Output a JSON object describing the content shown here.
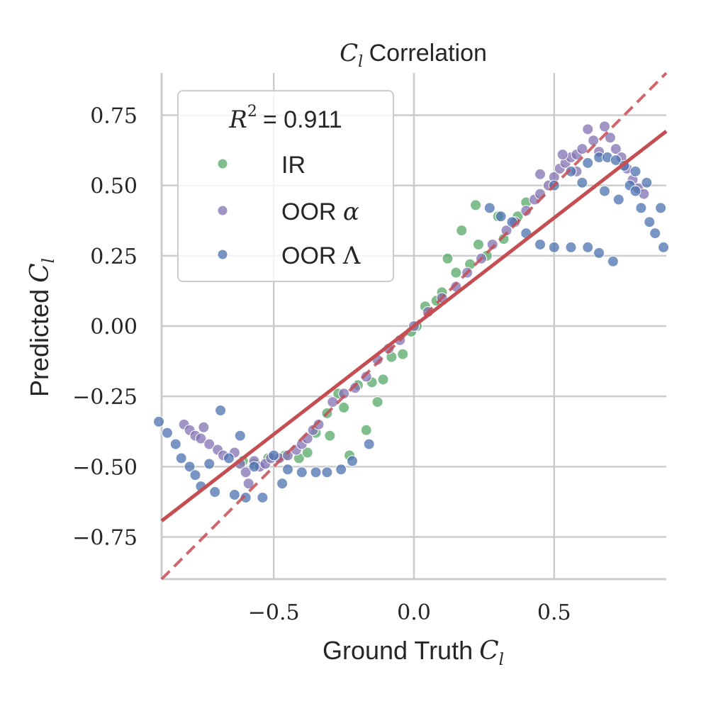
{
  "chart_data": {
    "type": "scatter",
    "title_symbol": "C",
    "title_subscript": "l",
    "title_rest": "Correlation",
    "xlabel_text": "Ground Truth",
    "xlabel_symbol": "C",
    "xlabel_subscript": "l",
    "ylabel_text": "Predicted",
    "ylabel_symbol": "C",
    "ylabel_subscript": "l",
    "xlim": [
      -0.9,
      0.9
    ],
    "ylim": [
      -0.9,
      0.9
    ],
    "xticks": [
      -0.5,
      0.0,
      0.5
    ],
    "xtick_labels": [
      "−0.5",
      "0.0",
      "0.5"
    ],
    "yticks": [
      0.75,
      0.5,
      0.25,
      0.0,
      -0.25,
      -0.5,
      -0.75
    ],
    "ytick_labels": [
      "0.75",
      "0.50",
      "0.25",
      "0.00",
      "−0.25",
      "−0.50",
      "−0.75"
    ],
    "grid": true,
    "legend_placement": "top-left",
    "legend_title_symbol": "R",
    "legend_title_exponent": "2",
    "legend_title_value": "= 0.911",
    "series": [
      {
        "name": "IR",
        "label_text": "IR",
        "label_symbol": "",
        "color": "#55a868",
        "points": [
          [
            -0.61,
            -0.48
          ],
          [
            -0.57,
            -0.49
          ],
          [
            -0.52,
            -0.47
          ],
          [
            -0.46,
            -0.46
          ],
          [
            -0.41,
            -0.47
          ],
          [
            -0.38,
            -0.45
          ],
          [
            -0.35,
            -0.38
          ],
          [
            -0.31,
            -0.31
          ],
          [
            -0.3,
            -0.39
          ],
          [
            -0.27,
            -0.24
          ],
          [
            -0.25,
            -0.29
          ],
          [
            -0.23,
            -0.46
          ],
          [
            -0.2,
            -0.21
          ],
          [
            -0.17,
            -0.37
          ],
          [
            -0.15,
            -0.2
          ],
          [
            -0.13,
            -0.27
          ],
          [
            -0.11,
            -0.19
          ],
          [
            -0.08,
            -0.11
          ],
          [
            -0.04,
            -0.1
          ],
          [
            -0.01,
            -0.02
          ],
          [
            0.01,
            0.0
          ],
          [
            0.04,
            0.07
          ],
          [
            0.08,
            0.09
          ],
          [
            0.1,
            0.12
          ],
          [
            0.12,
            0.24
          ],
          [
            0.15,
            0.19
          ],
          [
            0.17,
            0.34
          ],
          [
            0.2,
            0.22
          ],
          [
            0.22,
            0.43
          ],
          [
            0.23,
            0.29
          ],
          [
            0.26,
            0.25
          ],
          [
            0.3,
            0.39
          ],
          [
            0.32,
            0.31
          ],
          [
            0.37,
            0.39
          ],
          [
            0.4,
            0.44
          ]
        ]
      },
      {
        "name": "OOR α",
        "label_text": "OOR ",
        "label_symbol": "α",
        "color": "#8172b3",
        "points": [
          [
            -0.82,
            -0.35
          ],
          [
            -0.8,
            -0.37
          ],
          [
            -0.78,
            -0.39
          ],
          [
            -0.76,
            -0.4
          ],
          [
            -0.75,
            -0.36
          ],
          [
            -0.73,
            -0.42
          ],
          [
            -0.7,
            -0.44
          ],
          [
            -0.68,
            -0.46
          ],
          [
            -0.64,
            -0.45
          ],
          [
            -0.62,
            -0.49
          ],
          [
            -0.6,
            -0.52
          ],
          [
            -0.59,
            -0.56
          ],
          [
            -0.57,
            -0.48
          ],
          [
            -0.55,
            -0.5
          ],
          [
            -0.53,
            -0.49
          ],
          [
            -0.51,
            -0.47
          ],
          [
            -0.48,
            -0.47
          ],
          [
            -0.45,
            -0.46
          ],
          [
            -0.42,
            -0.44
          ],
          [
            -0.4,
            -0.42
          ],
          [
            -0.38,
            -0.4
          ],
          [
            -0.36,
            -0.37
          ],
          [
            -0.34,
            -0.35
          ],
          [
            -0.29,
            -0.27
          ],
          [
            -0.25,
            -0.24
          ],
          [
            -0.21,
            -0.22
          ],
          [
            -0.17,
            -0.18
          ],
          [
            -0.13,
            -0.12
          ],
          [
            -0.09,
            -0.08
          ],
          [
            -0.05,
            -0.05
          ],
          [
            0.0,
            0.0
          ],
          [
            0.05,
            0.05
          ],
          [
            0.1,
            0.1
          ],
          [
            0.15,
            0.14
          ],
          [
            0.19,
            0.19
          ],
          [
            0.24,
            0.24
          ],
          [
            0.28,
            0.29
          ],
          [
            0.33,
            0.34
          ],
          [
            0.36,
            0.37
          ],
          [
            0.4,
            0.41
          ],
          [
            0.43,
            0.45
          ],
          [
            0.45,
            0.47
          ],
          [
            0.48,
            0.5
          ],
          [
            0.5,
            0.53
          ],
          [
            0.52,
            0.56
          ],
          [
            0.54,
            0.58
          ],
          [
            0.56,
            0.6
          ],
          [
            0.58,
            0.61
          ],
          [
            0.6,
            0.63
          ],
          [
            0.62,
            0.7
          ],
          [
            0.64,
            0.66
          ],
          [
            0.66,
            0.62
          ],
          [
            0.68,
            0.71
          ],
          [
            0.7,
            0.67
          ],
          [
            0.72,
            0.63
          ],
          [
            0.74,
            0.6
          ],
          [
            0.76,
            0.56
          ],
          [
            0.78,
            0.52
          ],
          [
            0.8,
            0.49
          ],
          [
            0.82,
            0.47
          ],
          [
            0.45,
            0.54
          ],
          [
            0.53,
            0.61
          ],
          [
            0.58,
            0.55
          ]
        ]
      },
      {
        "name": "OOR Λ",
        "label_text": "OOR ",
        "label_symbol": "Λ",
        "color": "#4c72b0",
        "points": [
          [
            -0.91,
            -0.34
          ],
          [
            -0.88,
            -0.38
          ],
          [
            -0.85,
            -0.42
          ],
          [
            -0.83,
            -0.47
          ],
          [
            -0.8,
            -0.5
          ],
          [
            -0.78,
            -0.53
          ],
          [
            -0.76,
            -0.57
          ],
          [
            -0.73,
            -0.49
          ],
          [
            -0.71,
            -0.59
          ],
          [
            -0.69,
            -0.3
          ],
          [
            -0.66,
            -0.47
          ],
          [
            -0.64,
            -0.6
          ],
          [
            -0.62,
            -0.39
          ],
          [
            -0.6,
            -0.61
          ],
          [
            -0.57,
            -0.5
          ],
          [
            -0.54,
            -0.61
          ],
          [
            -0.5,
            -0.46
          ],
          [
            -0.47,
            -0.56
          ],
          [
            -0.45,
            -0.51
          ],
          [
            -0.4,
            -0.52
          ],
          [
            -0.35,
            -0.52
          ],
          [
            -0.31,
            -0.52
          ],
          [
            -0.26,
            -0.51
          ],
          [
            -0.22,
            -0.48
          ],
          [
            -0.16,
            -0.42
          ],
          [
            0.27,
            0.42
          ],
          [
            0.31,
            0.39
          ],
          [
            0.35,
            0.37
          ],
          [
            0.4,
            0.33
          ],
          [
            0.45,
            0.29
          ],
          [
            0.5,
            0.28
          ],
          [
            0.56,
            0.28
          ],
          [
            0.62,
            0.28
          ],
          [
            0.66,
            0.26
          ],
          [
            0.71,
            0.23
          ],
          [
            0.5,
            0.5
          ],
          [
            0.56,
            0.55
          ],
          [
            0.6,
            0.51
          ],
          [
            0.62,
            0.58
          ],
          [
            0.66,
            0.6
          ],
          [
            0.69,
            0.6
          ],
          [
            0.72,
            0.59
          ],
          [
            0.75,
            0.57
          ],
          [
            0.77,
            0.5
          ],
          [
            0.79,
            0.48
          ],
          [
            0.81,
            0.42
          ],
          [
            0.84,
            0.37
          ],
          [
            0.86,
            0.33
          ],
          [
            0.89,
            0.28
          ],
          [
            0.88,
            0.42
          ],
          [
            0.83,
            0.51
          ],
          [
            0.79,
            0.55
          ],
          [
            0.73,
            0.45
          ],
          [
            0.68,
            0.48
          ]
        ]
      }
    ],
    "fit_line": {
      "slope": 0.77,
      "intercept": 0.0,
      "color": "#c44e52"
    },
    "identity_line": {
      "slope": 1.0,
      "intercept": 0.0,
      "color": "#c44e52",
      "style": "dashed"
    }
  }
}
